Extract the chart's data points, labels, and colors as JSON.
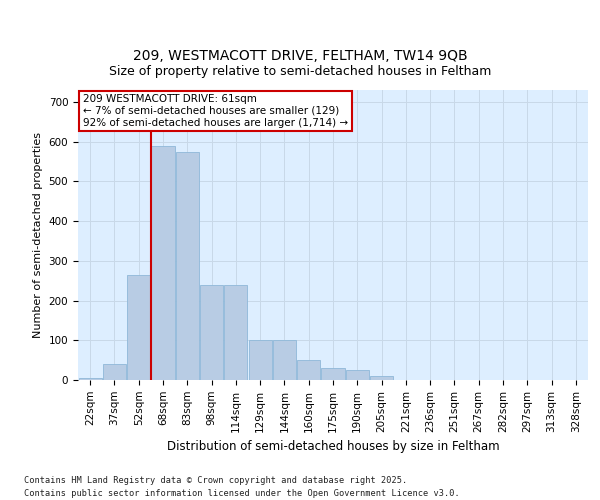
{
  "title_line1": "209, WESTMACOTT DRIVE, FELTHAM, TW14 9QB",
  "title_line2": "Size of property relative to semi-detached houses in Feltham",
  "xlabel": "Distribution of semi-detached houses by size in Feltham",
  "ylabel": "Number of semi-detached properties",
  "categories": [
    "22sqm",
    "37sqm",
    "52sqm",
    "68sqm",
    "83sqm",
    "98sqm",
    "114sqm",
    "129sqm",
    "144sqm",
    "160sqm",
    "175sqm",
    "190sqm",
    "205sqm",
    "221sqm",
    "236sqm",
    "251sqm",
    "267sqm",
    "282sqm",
    "297sqm",
    "313sqm",
    "328sqm"
  ],
  "values": [
    5,
    40,
    265,
    590,
    575,
    240,
    240,
    100,
    100,
    50,
    30,
    25,
    10,
    0,
    0,
    0,
    0,
    0,
    0,
    0,
    0
  ],
  "bar_color": "#b8cce4",
  "bar_edge_color": "#8fb8d8",
  "grid_color": "#c8d8e8",
  "background_color": "#ddeeff",
  "vline_color": "#cc0000",
  "vline_pos": 2.5,
  "annotation_title": "209 WESTMACOTT DRIVE: 61sqm",
  "annotation_line1": "← 7% of semi-detached houses are smaller (129)",
  "annotation_line2": "92% of semi-detached houses are larger (1,714) →",
  "annotation_box_color": "#cc0000",
  "ylim": [
    0,
    730
  ],
  "yticks": [
    0,
    100,
    200,
    300,
    400,
    500,
    600,
    700
  ],
  "footer": "Contains HM Land Registry data © Crown copyright and database right 2025.\nContains public sector information licensed under the Open Government Licence v3.0.",
  "title_fontsize": 10,
  "subtitle_fontsize": 9,
  "ylabel_fontsize": 8,
  "xlabel_fontsize": 8.5,
  "tick_fontsize": 7.5,
  "annot_fontsize": 7.5
}
